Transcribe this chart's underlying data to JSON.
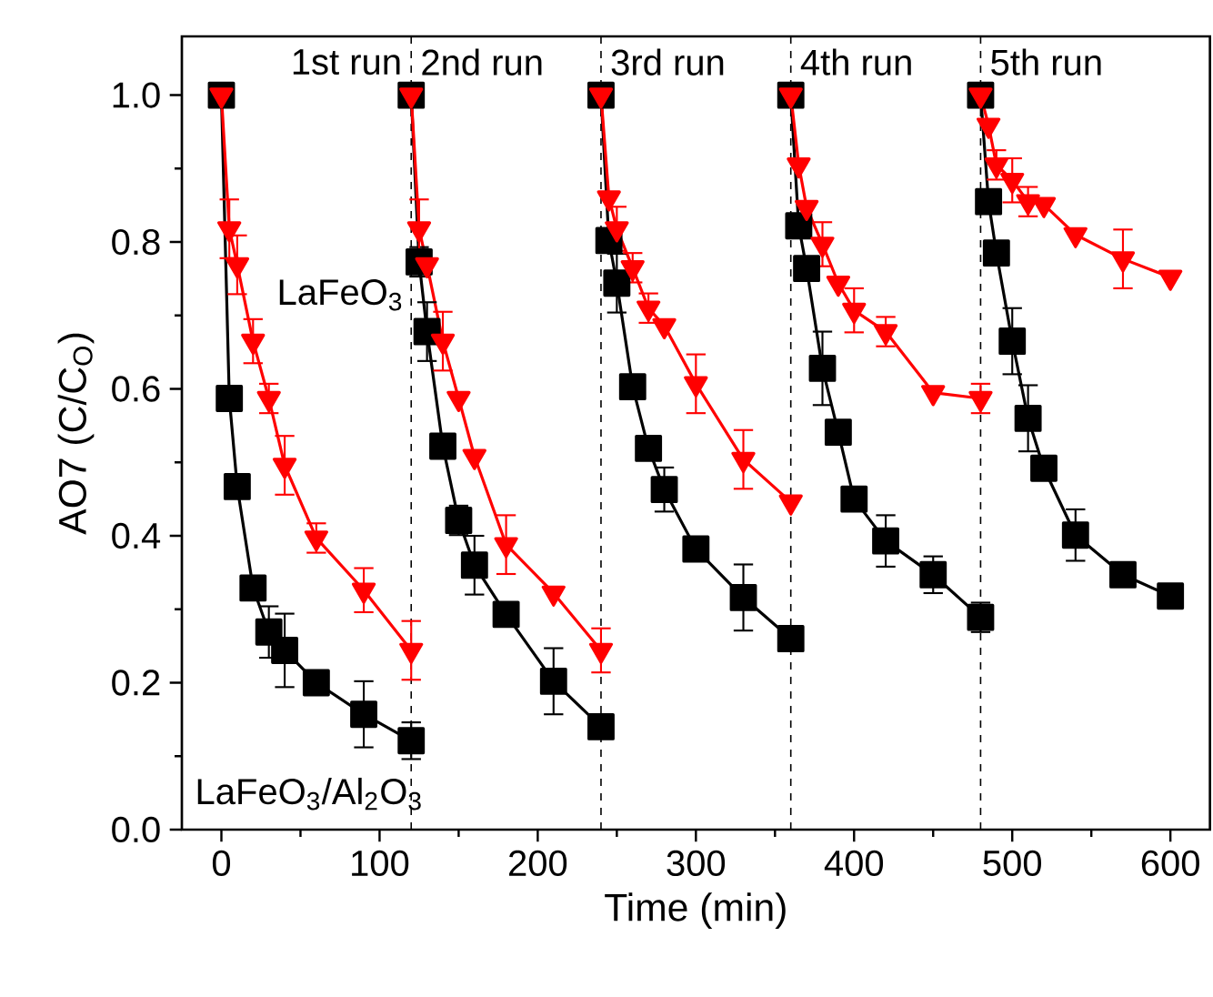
{
  "chart_data": {
    "type": "line",
    "xlabel": "Time (min)",
    "ylabel": "AO7 (C/C$_{O}$)",
    "xlim": [
      -25,
      625
    ],
    "ylim": [
      0,
      1.08
    ],
    "xticks": [
      0,
      100,
      200,
      300,
      400,
      500,
      600
    ],
    "yticks": [
      {
        "value": 0,
        "label": "0.0"
      },
      {
        "value": 0.2,
        "label": "0.2"
      },
      {
        "value": 0.4,
        "label": "0.4"
      },
      {
        "value": 0.6,
        "label": "0.6"
      },
      {
        "value": 0.8,
        "label": "0.8"
      },
      {
        "value": 1.0,
        "label": "1.0"
      }
    ],
    "grid": false,
    "series": [
      {
        "color": "#000000",
        "marker": "square",
        "x": [
          0,
          5,
          10,
          20,
          30,
          40,
          60,
          90,
          120
        ],
        "values": [
          1.0,
          0.587,
          0.467,
          0.329,
          0.269,
          0.244,
          0.2,
          0.157,
          0.121
        ],
        "errors": [
          null,
          0.01,
          null,
          null,
          0.035,
          0.05,
          null,
          0.045,
          0.025
        ]
      },
      {
        "color": "#000000",
        "marker": "square",
        "x": [
          120,
          125,
          130,
          140,
          150,
          160,
          180,
          210,
          240
        ],
        "values": [
          1.0,
          0.773,
          0.678,
          0.522,
          0.421,
          0.36,
          0.293,
          0.202,
          0.14
        ],
        "errors": [
          null,
          0.02,
          0.04,
          null,
          0.02,
          0.04,
          null,
          0.045,
          null
        ]
      },
      {
        "color": "#000000",
        "marker": "square",
        "x": [
          240,
          245,
          250,
          260,
          270,
          280,
          300,
          330,
          360
        ],
        "values": [
          1.0,
          0.802,
          0.744,
          0.603,
          0.519,
          0.463,
          0.382,
          0.316,
          0.26
        ],
        "errors": [
          null,
          null,
          0.04,
          null,
          null,
          0.03,
          null,
          0.045,
          0.015
        ]
      },
      {
        "color": "#000000",
        "marker": "square",
        "x": [
          360,
          365,
          370,
          380,
          390,
          400,
          420,
          450,
          480
        ],
        "values": [
          1.0,
          0.822,
          0.764,
          0.628,
          0.541,
          0.45,
          0.393,
          0.347,
          0.289
        ],
        "errors": [
          null,
          null,
          null,
          0.05,
          null,
          null,
          0.035,
          0.025,
          0.02
        ]
      },
      {
        "color": "#000000",
        "marker": "square",
        "x": [
          480,
          485,
          490,
          500,
          510,
          520,
          540,
          570,
          600
        ],
        "values": [
          1.0,
          0.855,
          0.785,
          0.665,
          0.56,
          0.492,
          0.401,
          0.347,
          0.318
        ],
        "errors": [
          null,
          null,
          null,
          0.045,
          0.045,
          null,
          0.035,
          0.01,
          null
        ]
      },
      {
        "color": "#ff0000",
        "marker": "triangle",
        "x": [
          0,
          5,
          10,
          20,
          30,
          40,
          60,
          90,
          120
        ],
        "values": [
          1.0,
          0.818,
          0.769,
          0.665,
          0.587,
          0.496,
          0.397,
          0.326,
          0.244
        ],
        "errors": [
          null,
          0.04,
          0.04,
          0.03,
          0.02,
          0.04,
          0.02,
          0.03,
          0.04
        ]
      },
      {
        "color": "#ff0000",
        "marker": "triangle",
        "x": [
          120,
          125,
          130,
          140,
          150,
          160,
          180,
          210,
          240
        ],
        "values": [
          1.0,
          0.818,
          0.769,
          0.665,
          0.587,
          0.508,
          0.388,
          0.322,
          0.244
        ],
        "errors": [
          null,
          0.04,
          null,
          0.04,
          null,
          null,
          0.04,
          null,
          0.03
        ]
      },
      {
        "color": "#ff0000",
        "marker": "triangle",
        "x": [
          240,
          245,
          250,
          260,
          270,
          280,
          300,
          330,
          360
        ],
        "values": [
          1.0,
          0.86,
          0.818,
          0.765,
          0.71,
          0.686,
          0.607,
          0.504,
          0.446
        ],
        "errors": [
          null,
          null,
          0.03,
          0.02,
          0.02,
          null,
          0.04,
          0.04,
          null
        ]
      },
      {
        "color": "#ff0000",
        "marker": "triangle",
        "x": [
          360,
          365,
          370,
          380,
          390,
          400,
          420,
          450,
          480
        ],
        "values": [
          1.0,
          0.905,
          0.847,
          0.797,
          0.744,
          0.707,
          0.678,
          0.595,
          0.587
        ],
        "errors": [
          null,
          null,
          null,
          0.03,
          null,
          0.03,
          0.02,
          null,
          0.02
        ]
      },
      {
        "color": "#ff0000",
        "marker": "triangle",
        "x": [
          480,
          485,
          490,
          500,
          510,
          520,
          540,
          570,
          600
        ],
        "values": [
          1.0,
          0.959,
          0.905,
          0.884,
          0.855,
          0.851,
          0.81,
          0.777,
          0.752
        ],
        "errors": [
          null,
          null,
          0.02,
          0.03,
          0.02,
          null,
          null,
          0.04,
          null
        ]
      }
    ],
    "ref_lines": [
      {
        "axis": "x",
        "value": 120,
        "line_style": "dashed"
      },
      {
        "axis": "x",
        "value": 240,
        "line_style": "dashed"
      },
      {
        "axis": "x",
        "value": 360,
        "line_style": "dashed"
      },
      {
        "axis": "x",
        "value": 480,
        "line_style": "dashed"
      }
    ],
    "annotations": [
      "1st run",
      "2nd run",
      "3rd run",
      "4th run",
      "5th run",
      "LaFeO$_{3}$",
      "LaFeO$_{3}$/Al$_{2}$O$_{3}$"
    ]
  }
}
